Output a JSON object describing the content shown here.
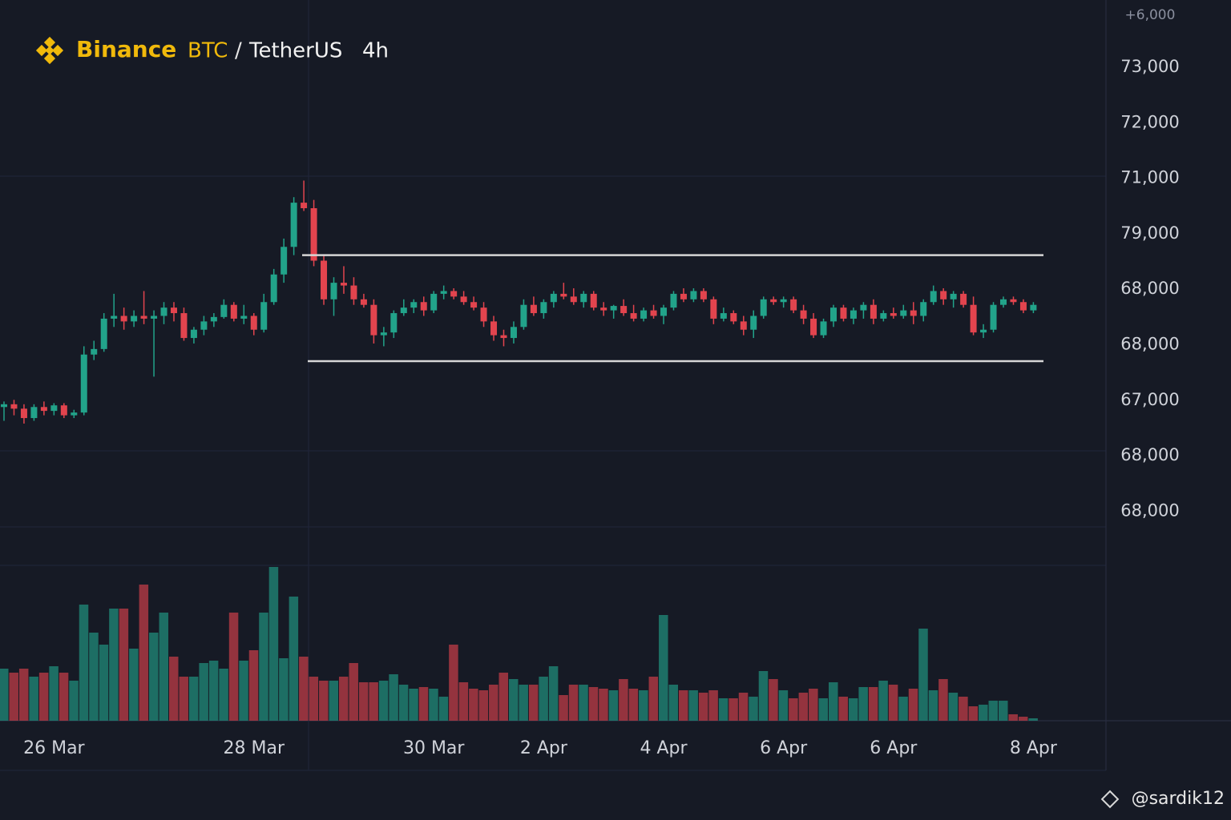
{
  "chart_data": {
    "type": "candlestick",
    "exchange": "Binance",
    "symbol": "BTC",
    "separator": "/",
    "quote": "TetherUS",
    "interval": "4h",
    "watermark": "@sardik12",
    "price_axis_labels": [
      "+6,000",
      "73,000",
      "72,000",
      "71,000",
      "79,000",
      "68,000",
      "68,000",
      "67,000",
      "68,000",
      "68,000"
    ],
    "ylim": [
      64650,
      74220
    ],
    "up_color": "#22a38a",
    "down_color": "#e2444e",
    "range_lines": [
      69600,
      67680
    ],
    "range_color": "#d6d6d6",
    "categories": [
      null,
      null,
      null,
      null,
      null,
      "26 Mar",
      null,
      null,
      null,
      null,
      null,
      null,
      null,
      null,
      null,
      null,
      null,
      null,
      null,
      null,
      null,
      null,
      null,
      null,
      null,
      "28 Mar",
      null,
      null,
      null,
      null,
      null,
      null,
      null,
      null,
      null,
      null,
      null,
      null,
      null,
      null,
      null,
      null,
      null,
      "30 Mar",
      null,
      null,
      null,
      null,
      null,
      null,
      null,
      null,
      null,
      null,
      "2 Apr",
      null,
      null,
      null,
      null,
      null,
      null,
      null,
      null,
      null,
      null,
      null,
      "4 Apr",
      null,
      null,
      null,
      null,
      null,
      null,
      null,
      null,
      null,
      null,
      null,
      "6 Apr",
      null,
      null,
      null,
      null,
      null,
      null,
      null,
      null,
      null,
      null,
      "6 Apr",
      null,
      null,
      null,
      null,
      null,
      null,
      null,
      null,
      null,
      null,
      null,
      null,
      null,
      "8 Apr"
    ],
    "ohlc": [
      [
        66850,
        66950,
        66600,
        66900
      ],
      [
        66900,
        66980,
        66700,
        66820
      ],
      [
        66820,
        66900,
        66550,
        66650
      ],
      [
        66650,
        66900,
        66600,
        66850
      ],
      [
        66850,
        66950,
        66700,
        66780
      ],
      [
        66780,
        66920,
        66700,
        66880
      ],
      [
        66880,
        66920,
        66650,
        66700
      ],
      [
        66700,
        66800,
        66650,
        66750
      ],
      [
        66750,
        67950,
        66700,
        67800
      ],
      [
        67800,
        68050,
        67700,
        67900
      ],
      [
        67900,
        68550,
        67850,
        68450
      ],
      [
        68450,
        68900,
        68300,
        68500
      ],
      [
        68500,
        68650,
        68250,
        68400
      ],
      [
        68400,
        68600,
        68300,
        68500
      ],
      [
        68500,
        68950,
        68350,
        68450
      ],
      [
        68450,
        68600,
        67400,
        68500
      ],
      [
        68500,
        68750,
        68350,
        68650
      ],
      [
        68650,
        68750,
        68400,
        68550
      ],
      [
        68550,
        68650,
        68050,
        68100
      ],
      [
        68100,
        68300,
        68000,
        68250
      ],
      [
        68250,
        68500,
        68150,
        68400
      ],
      [
        68400,
        68550,
        68300,
        68480
      ],
      [
        68480,
        68800,
        68450,
        68700
      ],
      [
        68700,
        68750,
        68400,
        68450
      ],
      [
        68450,
        68700,
        68350,
        68500
      ],
      [
        68500,
        68550,
        68150,
        68250
      ],
      [
        68250,
        68900,
        68200,
        68750
      ],
      [
        68750,
        69350,
        68700,
        69250
      ],
      [
        69250,
        69900,
        69100,
        69750
      ],
      [
        69750,
        70650,
        69600,
        70550
      ],
      [
        70550,
        70950,
        70400,
        70450
      ],
      [
        70450,
        70600,
        69400,
        69500
      ],
      [
        69500,
        69600,
        68700,
        68800
      ],
      [
        68800,
        69200,
        68500,
        69100
      ],
      [
        69100,
        69400,
        68900,
        69050
      ],
      [
        69050,
        69200,
        68700,
        68800
      ],
      [
        68800,
        68900,
        68650,
        68700
      ],
      [
        68700,
        68800,
        68000,
        68150
      ],
      [
        68150,
        68300,
        67950,
        68200
      ],
      [
        68200,
        68600,
        68100,
        68550
      ],
      [
        68550,
        68800,
        68500,
        68650
      ],
      [
        68650,
        68800,
        68550,
        68750
      ],
      [
        68750,
        68850,
        68500,
        68600
      ],
      [
        68600,
        68950,
        68550,
        68900
      ],
      [
        68900,
        69050,
        68800,
        68950
      ],
      [
        68950,
        69000,
        68800,
        68850
      ],
      [
        68850,
        68950,
        68700,
        68750
      ],
      [
        68750,
        68850,
        68600,
        68650
      ],
      [
        68650,
        68750,
        68300,
        68400
      ],
      [
        68400,
        68500,
        68050,
        68150
      ],
      [
        68150,
        68250,
        67950,
        68100
      ],
      [
        68100,
        68400,
        68000,
        68300
      ],
      [
        68300,
        68800,
        68250,
        68700
      ],
      [
        68700,
        68850,
        68500,
        68550
      ],
      [
        68550,
        68800,
        68450,
        68750
      ],
      [
        68750,
        68950,
        68650,
        68900
      ],
      [
        68900,
        69100,
        68800,
        68850
      ],
      [
        68850,
        69000,
        68700,
        68750
      ],
      [
        68750,
        68950,
        68650,
        68900
      ],
      [
        68900,
        68950,
        68600,
        68650
      ],
      [
        68650,
        68750,
        68500,
        68600
      ],
      [
        68600,
        68700,
        68450,
        68680
      ],
      [
        68680,
        68800,
        68500,
        68550
      ],
      [
        68550,
        68700,
        68400,
        68450
      ],
      [
        68450,
        68650,
        68400,
        68600
      ],
      [
        68600,
        68700,
        68450,
        68500
      ],
      [
        68500,
        68700,
        68350,
        68650
      ],
      [
        68650,
        68950,
        68600,
        68900
      ],
      [
        68900,
        69000,
        68750,
        68800
      ],
      [
        68800,
        69000,
        68750,
        68950
      ],
      [
        68950,
        69000,
        68750,
        68800
      ],
      [
        68800,
        68850,
        68350,
        68450
      ],
      [
        68450,
        68650,
        68400,
        68550
      ],
      [
        68550,
        68600,
        68350,
        68400
      ],
      [
        68400,
        68500,
        68150,
        68250
      ],
      [
        68250,
        68600,
        68100,
        68500
      ],
      [
        68500,
        68850,
        68450,
        68800
      ],
      [
        68800,
        68850,
        68700,
        68750
      ],
      [
        68750,
        68850,
        68650,
        68800
      ],
      [
        68800,
        68850,
        68550,
        68600
      ],
      [
        68600,
        68700,
        68350,
        68450
      ],
      [
        68450,
        68550,
        68100,
        68150
      ],
      [
        68150,
        68450,
        68100,
        68400
      ],
      [
        68400,
        68700,
        68300,
        68650
      ],
      [
        68650,
        68700,
        68400,
        68450
      ],
      [
        68450,
        68650,
        68350,
        68600
      ],
      [
        68600,
        68750,
        68450,
        68700
      ],
      [
        68700,
        68800,
        68350,
        68450
      ],
      [
        68450,
        68600,
        68400,
        68550
      ],
      [
        68550,
        68650,
        68450,
        68500
      ],
      [
        68500,
        68700,
        68450,
        68600
      ],
      [
        68600,
        68750,
        68350,
        68500
      ],
      [
        68500,
        68800,
        68400,
        68750
      ],
      [
        68750,
        69050,
        68700,
        68950
      ],
      [
        68950,
        69000,
        68700,
        68800
      ],
      [
        68800,
        68950,
        68650,
        68900
      ],
      [
        68900,
        68950,
        68650,
        68700
      ],
      [
        68700,
        68850,
        68150,
        68200
      ],
      [
        68200,
        68350,
        68100,
        68250
      ],
      [
        68250,
        68750,
        68200,
        68700
      ],
      [
        68700,
        68850,
        68650,
        68800
      ],
      [
        68800,
        68850,
        68700,
        68750
      ],
      [
        68750,
        68800,
        68550,
        68600
      ],
      [
        68600,
        68750,
        68550,
        68700
      ]
    ],
    "volume": [
      65,
      60,
      65,
      55,
      60,
      68,
      60,
      50,
      145,
      110,
      95,
      140,
      140,
      90,
      170,
      110,
      135,
      80,
      55,
      55,
      72,
      75,
      65,
      135,
      75,
      88,
      135,
      192,
      78,
      155,
      80,
      55,
      50,
      50,
      55,
      72,
      48,
      48,
      50,
      58,
      45,
      40,
      42,
      40,
      30,
      95,
      48,
      40,
      38,
      45,
      60,
      52,
      45,
      45,
      55,
      68,
      32,
      45,
      45,
      42,
      40,
      38,
      52,
      40,
      38,
      55,
      132,
      45,
      38,
      38,
      35,
      38,
      28,
      28,
      35,
      30,
      62,
      52,
      38,
      28,
      35,
      40,
      28,
      48,
      30,
      28,
      42,
      42,
      50,
      45,
      30,
      40,
      115,
      38,
      52,
      35,
      30,
      18,
      20,
      25,
      25,
      8,
      5,
      3
    ],
    "volume_lim": [
      0,
      200
    ]
  }
}
